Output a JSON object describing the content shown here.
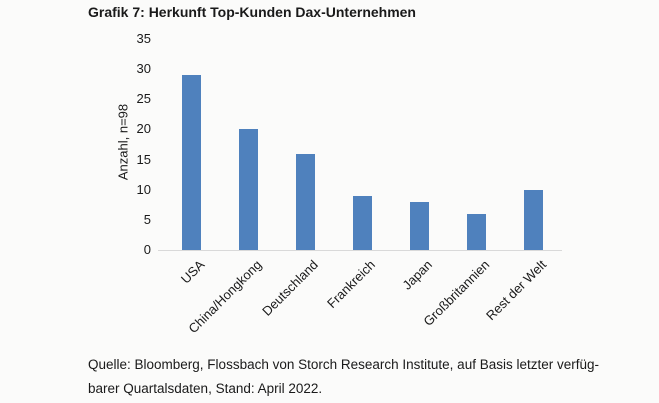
{
  "title": "Grafik 7: Herkunft Top-Kunden Dax-Unternehmen",
  "chart_data": {
    "type": "bar",
    "title": "Grafik 7: Herkunft Top-Kunden Dax-Unternehmen",
    "categories": [
      "USA",
      "China/Hongkong",
      "Deutschland",
      "Frankreich",
      "Japan",
      "Großbritannien",
      "Rest der Welt"
    ],
    "values": [
      29,
      20,
      16,
      9,
      8,
      6,
      10
    ],
    "xlabel": "",
    "ylabel": "Anzahl, n=98",
    "ylim": [
      0,
      35
    ],
    "yticks": [
      0,
      5,
      10,
      15,
      20,
      25,
      30,
      35
    ],
    "grid": false,
    "legend": false,
    "bar_color": "#4f81bd"
  },
  "source": {
    "lines": [
      "Quelle: Bloomberg, Flossbach von Storch Research Institute, auf Basis letzter verfüg-",
      "barer Quartalsdaten, Stand: April 2022."
    ]
  },
  "colors": {
    "bar": "#4f81bd",
    "axis_line": "#d9d9d9",
    "text": "#1a1a1a",
    "background": "#fbfbfa"
  }
}
